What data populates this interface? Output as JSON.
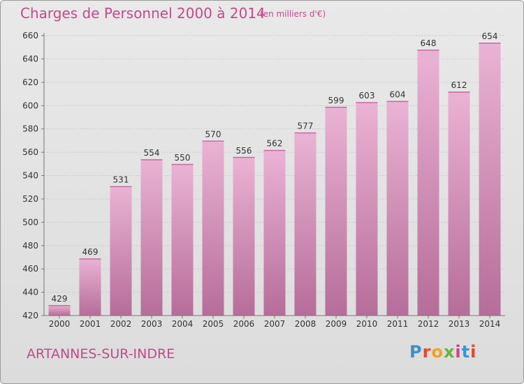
{
  "title": "Charges de Personnel 2000 à 2014",
  "unit_note": "(en milliers d'€)",
  "commune": "ARTANNES-SUR-INDRE",
  "logo": {
    "text": "Proxiti",
    "colors": [
      "#3a8fd0",
      "#e8462e",
      "#f2a31b",
      "#66b43a",
      "#d13f8c",
      "#2e9ad6",
      "#e8462e"
    ]
  },
  "colors": {
    "accent": "#c24a8a",
    "bar_light": "#e9aed0",
    "bar_dark": "#b86f9b",
    "grid": "#cccccc"
  },
  "chart_data": {
    "type": "bar",
    "categories": [
      "2000",
      "2001",
      "2002",
      "2003",
      "2004",
      "2005",
      "2006",
      "2007",
      "2008",
      "2009",
      "2010",
      "2011",
      "2012",
      "2013",
      "2014"
    ],
    "values": [
      429,
      469,
      531,
      554,
      550,
      570,
      556,
      562,
      577,
      599,
      603,
      604,
      648,
      612,
      654
    ],
    "ylim": [
      420,
      660
    ],
    "yticks": [
      420,
      440,
      460,
      480,
      500,
      520,
      540,
      560,
      580,
      600,
      620,
      640,
      660
    ],
    "grid": true,
    "xlabel": "",
    "ylabel": ""
  }
}
